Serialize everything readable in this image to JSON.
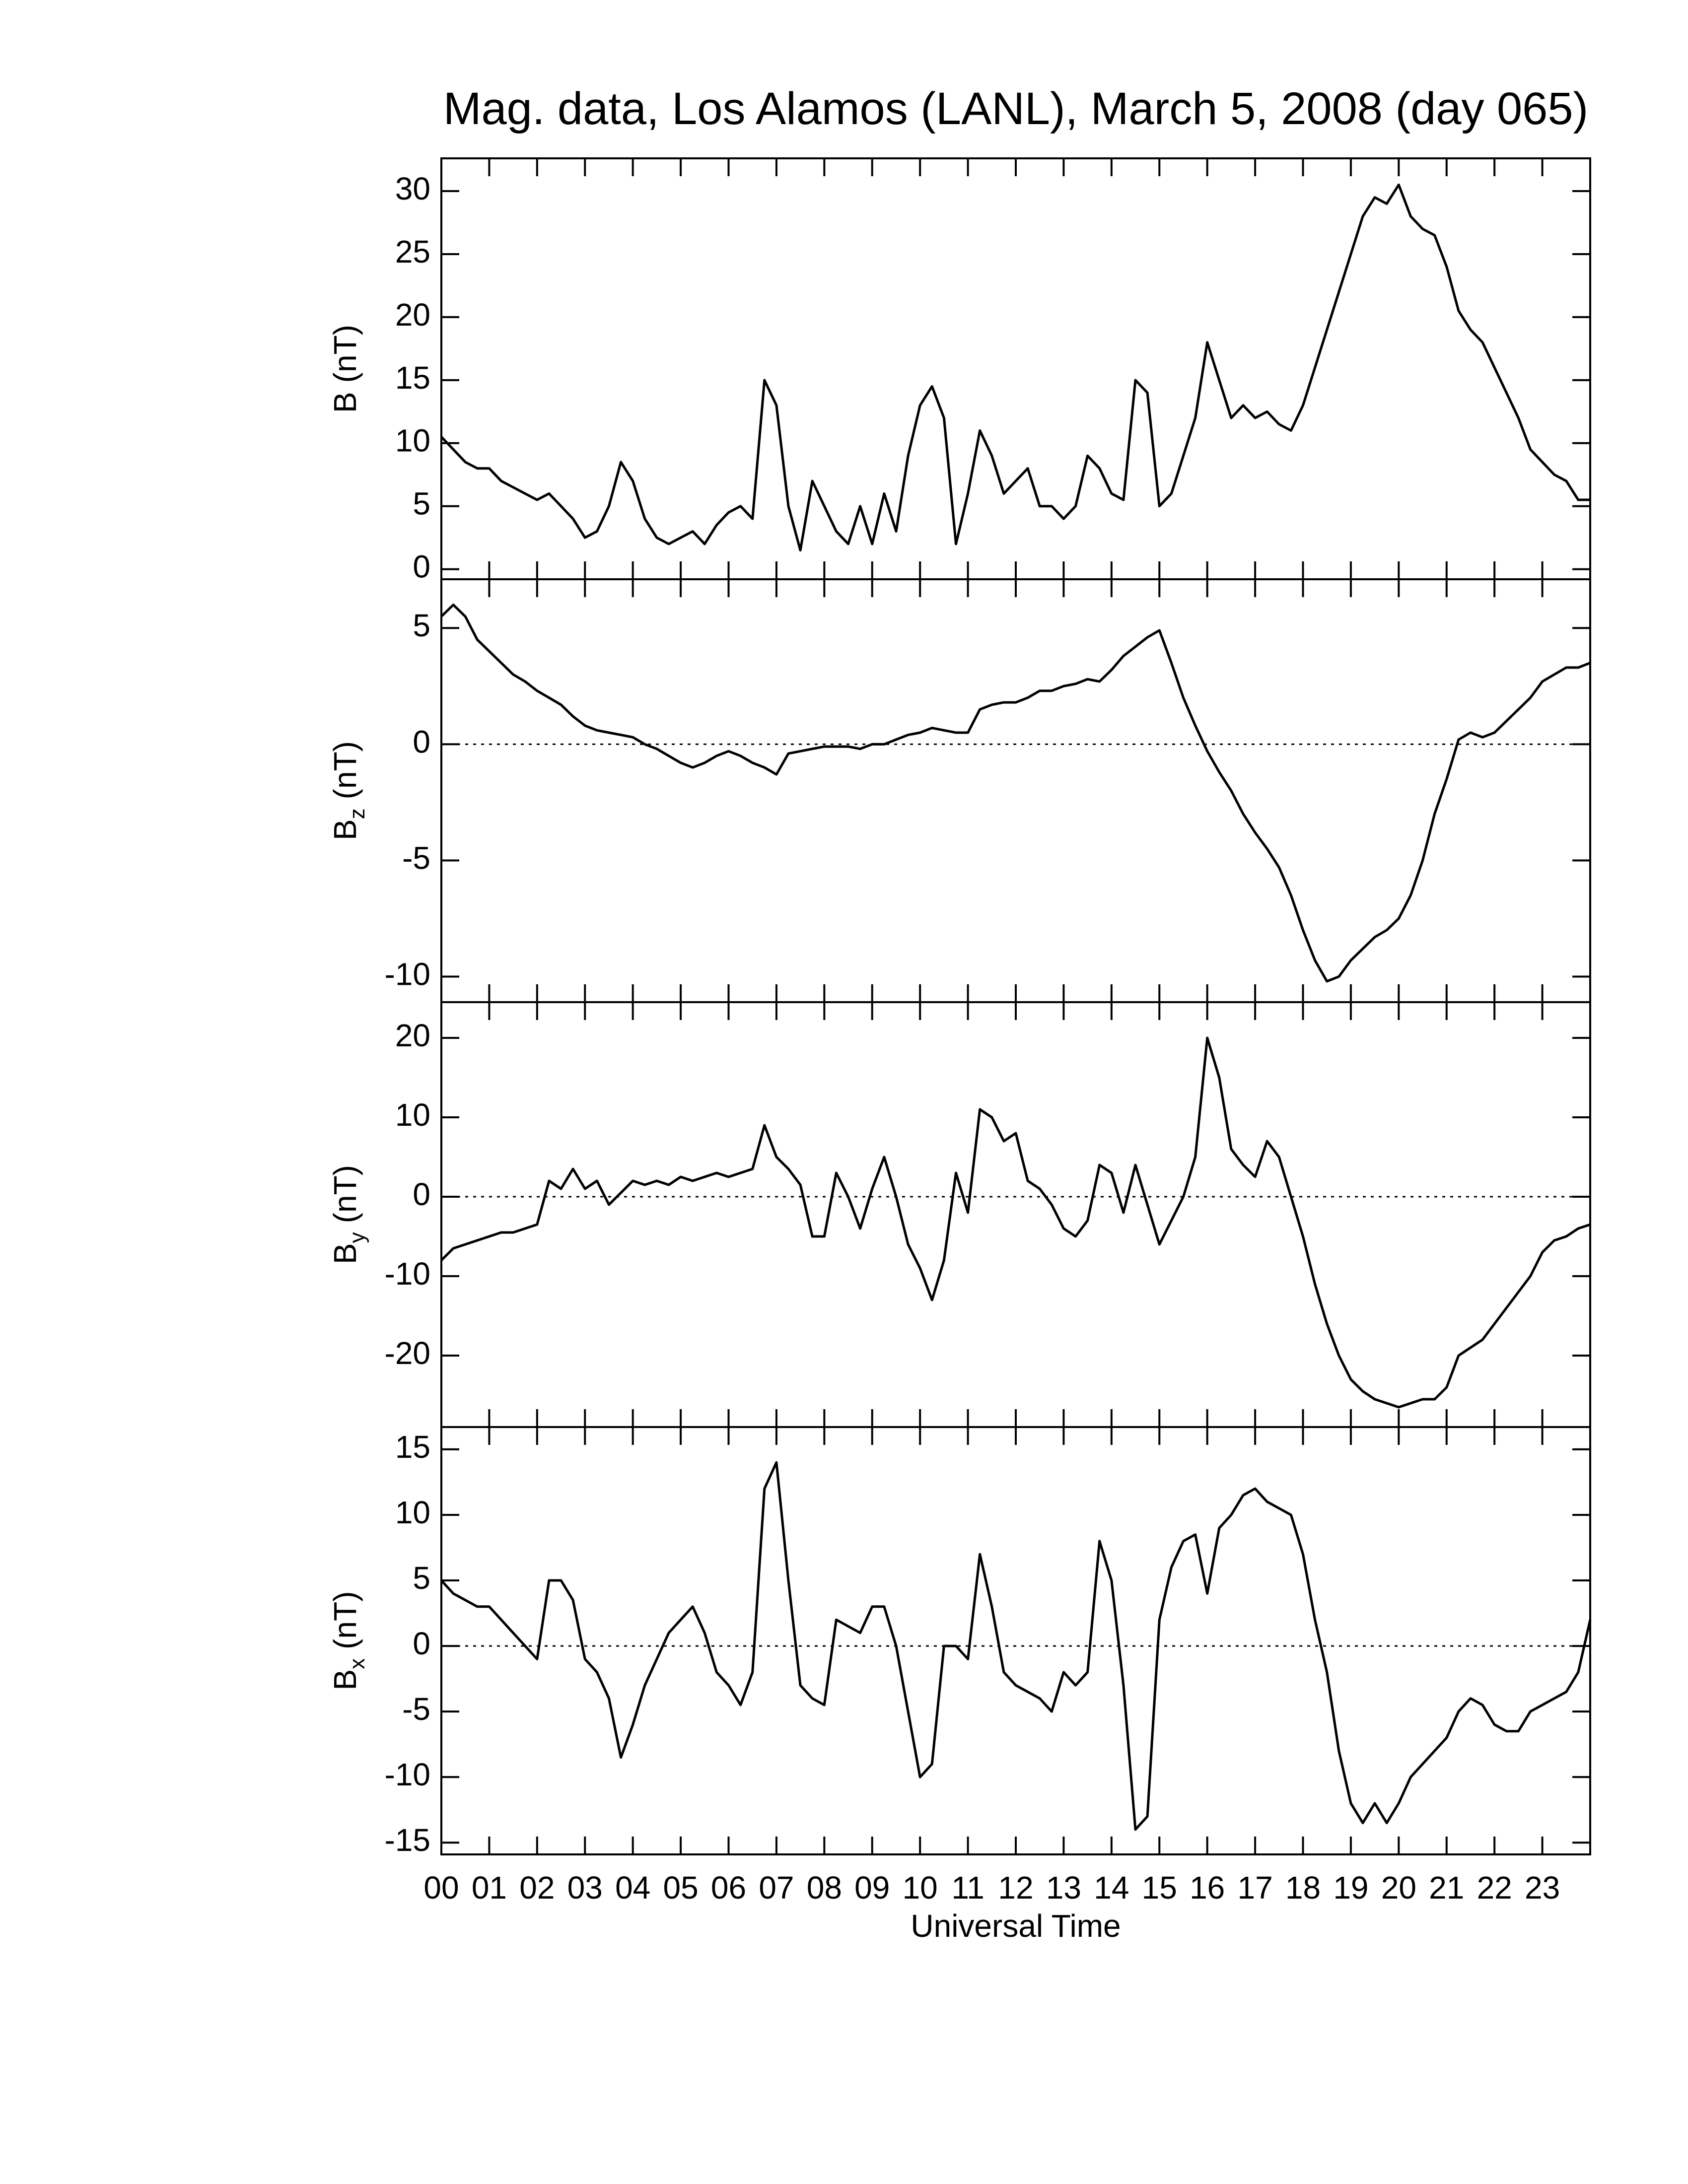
{
  "title": "Mag. data, Los Alamos (LANL), March 5, 2008 (day 065)",
  "x_axis": {
    "label": "Universal Time",
    "xlim": [
      0,
      24
    ],
    "xticks": [
      {
        "value": 0,
        "label": "00"
      },
      {
        "value": 1,
        "label": "01"
      },
      {
        "value": 2,
        "label": "02"
      },
      {
        "value": 3,
        "label": "03"
      },
      {
        "value": 4,
        "label": "04"
      },
      {
        "value": 5,
        "label": "05"
      },
      {
        "value": 6,
        "label": "06"
      },
      {
        "value": 7,
        "label": "07"
      },
      {
        "value": 8,
        "label": "08"
      },
      {
        "value": 9,
        "label": "09"
      },
      {
        "value": 10,
        "label": "10"
      },
      {
        "value": 11,
        "label": "11"
      },
      {
        "value": 12,
        "label": "12"
      },
      {
        "value": 13,
        "label": "13"
      },
      {
        "value": 14,
        "label": "14"
      },
      {
        "value": 15,
        "label": "15"
      },
      {
        "value": 16,
        "label": "16"
      },
      {
        "value": 17,
        "label": "17"
      },
      {
        "value": 18,
        "label": "18"
      },
      {
        "value": 19,
        "label": "19"
      },
      {
        "value": 20,
        "label": "20"
      },
      {
        "value": 21,
        "label": "21"
      },
      {
        "value": 22,
        "label": "22"
      },
      {
        "value": 23,
        "label": "23"
      }
    ],
    "x": [
      0,
      0.25,
      0.5,
      0.75,
      1,
      1.25,
      1.5,
      1.75,
      2,
      2.25,
      2.5,
      2.75,
      3,
      3.25,
      3.5,
      3.75,
      4,
      4.25,
      4.5,
      4.75,
      5,
      5.25,
      5.5,
      5.75,
      6,
      6.25,
      6.5,
      6.75,
      7,
      7.25,
      7.5,
      7.75,
      8,
      8.25,
      8.5,
      8.75,
      9,
      9.25,
      9.5,
      9.75,
      10,
      10.25,
      10.5,
      10.75,
      11,
      11.25,
      11.5,
      11.75,
      12,
      12.25,
      12.5,
      12.75,
      13,
      13.25,
      13.5,
      13.75,
      14,
      14.25,
      14.5,
      14.75,
      15,
      15.25,
      15.5,
      15.75,
      16,
      16.25,
      16.5,
      16.75,
      17,
      17.25,
      17.5,
      17.75,
      18,
      18.25,
      18.5,
      18.75,
      19,
      19.25,
      19.5,
      19.75,
      20,
      20.25,
      20.5,
      20.75,
      21,
      21.25,
      21.5,
      21.75,
      22,
      22.25,
      22.5,
      22.75,
      23,
      23.25,
      23.5,
      23.75,
      24
    ]
  },
  "chart_data": [
    {
      "type": "line",
      "ylabel": "B",
      "ylabel_unit": "(nT)",
      "color": "#000000",
      "ylim": [
        -0.8,
        32.6
      ],
      "yticks": [
        0,
        5,
        10,
        15,
        20,
        25,
        30
      ],
      "values": [
        10.5,
        9.5,
        8.5,
        8,
        8,
        7,
        6.5,
        6,
        5.5,
        6,
        5,
        4,
        2.5,
        3,
        5,
        8.5,
        7,
        4,
        2.5,
        2,
        2.5,
        3,
        2,
        3.5,
        4.5,
        5,
        4,
        15,
        13,
        5,
        1.5,
        7,
        5,
        3,
        2,
        5,
        2,
        6,
        3,
        9,
        13,
        14.5,
        12,
        2,
        6,
        11,
        9,
        6,
        7,
        8,
        5,
        5,
        4,
        5,
        9,
        8,
        6,
        5.5,
        15,
        14,
        5,
        6,
        9,
        12,
        18,
        15,
        12,
        13,
        12,
        12.5,
        11.5,
        11,
        13,
        16,
        19,
        22,
        25,
        28,
        29.5,
        29,
        30.5,
        28,
        27,
        26.5,
        24,
        20.5,
        19,
        18,
        16,
        14,
        12,
        9.5,
        8.5,
        7.5,
        7,
        5.5,
        5.5
      ]
    },
    {
      "type": "line",
      "ylabel": "B",
      "ylabel_sub": "z",
      "ylabel_unit": "(nT)",
      "color": "#000000",
      "ylim": [
        -11.1,
        7.1
      ],
      "yticks": [
        -10,
        -5,
        0,
        5
      ],
      "reference_line": 0,
      "values": [
        5.5,
        6,
        5.5,
        4.5,
        4,
        3.5,
        3,
        2.7,
        2.3,
        2,
        1.7,
        1.2,
        0.8,
        0.6,
        0.5,
        0.4,
        0.3,
        0,
        -0.2,
        -0.5,
        -0.8,
        -1,
        -0.8,
        -0.5,
        -0.3,
        -0.5,
        -0.8,
        -1,
        -1.3,
        -0.4,
        -0.3,
        -0.2,
        -0.1,
        -0.1,
        -0.1,
        -0.2,
        0,
        0,
        0.2,
        0.4,
        0.5,
        0.7,
        0.6,
        0.5,
        0.5,
        1.5,
        1.7,
        1.8,
        1.8,
        2,
        2.3,
        2.3,
        2.5,
        2.6,
        2.8,
        2.7,
        3.2,
        3.8,
        4.2,
        4.6,
        4.9,
        3.5,
        2,
        0.8,
        -0.3,
        -1.2,
        -2,
        -3,
        -3.8,
        -4.5,
        -5.3,
        -6.5,
        -8,
        -9.3,
        -10.2,
        -10,
        -9.3,
        -8.8,
        -8.3,
        -8,
        -7.5,
        -6.5,
        -5,
        -3,
        -1.5,
        0.2,
        0.5,
        0.3,
        0.5,
        1,
        1.5,
        2,
        2.7,
        3,
        3.3,
        3.3,
        3.5
      ]
    },
    {
      "type": "line",
      "ylabel": "B",
      "ylabel_sub": "y",
      "ylabel_unit": "(nT)",
      "color": "#000000",
      "ylim": [
        -29,
        24.5
      ],
      "yticks": [
        -20,
        -10,
        0,
        10,
        20
      ],
      "reference_line": 0,
      "values": [
        -8,
        -6.5,
        -6,
        -5.5,
        -5,
        -4.5,
        -4.5,
        -4,
        -3.5,
        2,
        1,
        3.5,
        1,
        2,
        -1,
        0.5,
        2,
        1.5,
        2,
        1.5,
        2.5,
        2,
        2.5,
        3,
        2.5,
        3,
        3.5,
        9,
        5,
        3.5,
        1.5,
        -5,
        -5,
        3,
        0,
        -4,
        1,
        5,
        0,
        -6,
        -9,
        -13,
        -8,
        3,
        -2,
        11,
        10,
        7,
        8,
        2,
        1,
        -1,
        -4,
        -5,
        -3,
        4,
        3,
        -2,
        4,
        -1,
        -6,
        -3,
        0,
        5,
        20,
        15,
        6,
        4,
        2.5,
        7,
        5,
        0,
        -5,
        -11,
        -16,
        -20,
        -23,
        -24.5,
        -25.5,
        -26,
        -26.5,
        -26,
        -25.5,
        -25.5,
        -24,
        -20,
        -19,
        -18,
        -16,
        -14,
        -12,
        -10,
        -7,
        -5.5,
        -5,
        -4,
        -3.5
      ]
    },
    {
      "type": "line",
      "ylabel": "B",
      "ylabel_sub": "x",
      "ylabel_unit": "(nT)",
      "color": "#000000",
      "ylim": [
        -15.9,
        16.7
      ],
      "yticks": [
        -15,
        -10,
        -5,
        0,
        5,
        10,
        15
      ],
      "reference_line": 0,
      "values": [
        5,
        4,
        3.5,
        3,
        3,
        2,
        1,
        0,
        -1,
        5,
        5,
        3.5,
        -1,
        -2,
        -4,
        -8.5,
        -6,
        -3,
        -1,
        1,
        2,
        3,
        1,
        -2,
        -3,
        -4.5,
        -2,
        12,
        14,
        5,
        -3,
        -4,
        -4.5,
        2,
        1.5,
        1,
        3,
        3,
        0,
        -5,
        -10,
        -9,
        0,
        0,
        -1,
        7,
        3,
        -2,
        -3,
        -3.5,
        -4,
        -5,
        -2,
        -3,
        -2,
        8,
        5,
        -3,
        -14,
        -13,
        2,
        6,
        8,
        8.5,
        4,
        9,
        10,
        11.5,
        12,
        11,
        10.5,
        10,
        7,
        2,
        -2,
        -8,
        -12,
        -13.5,
        -12,
        -13.5,
        -12,
        -10,
        -9,
        -8,
        -7,
        -5,
        -4,
        -4.5,
        -6,
        -6.5,
        -6.5,
        -5,
        -4.5,
        -4,
        -3.5,
        -2,
        2
      ]
    }
  ]
}
